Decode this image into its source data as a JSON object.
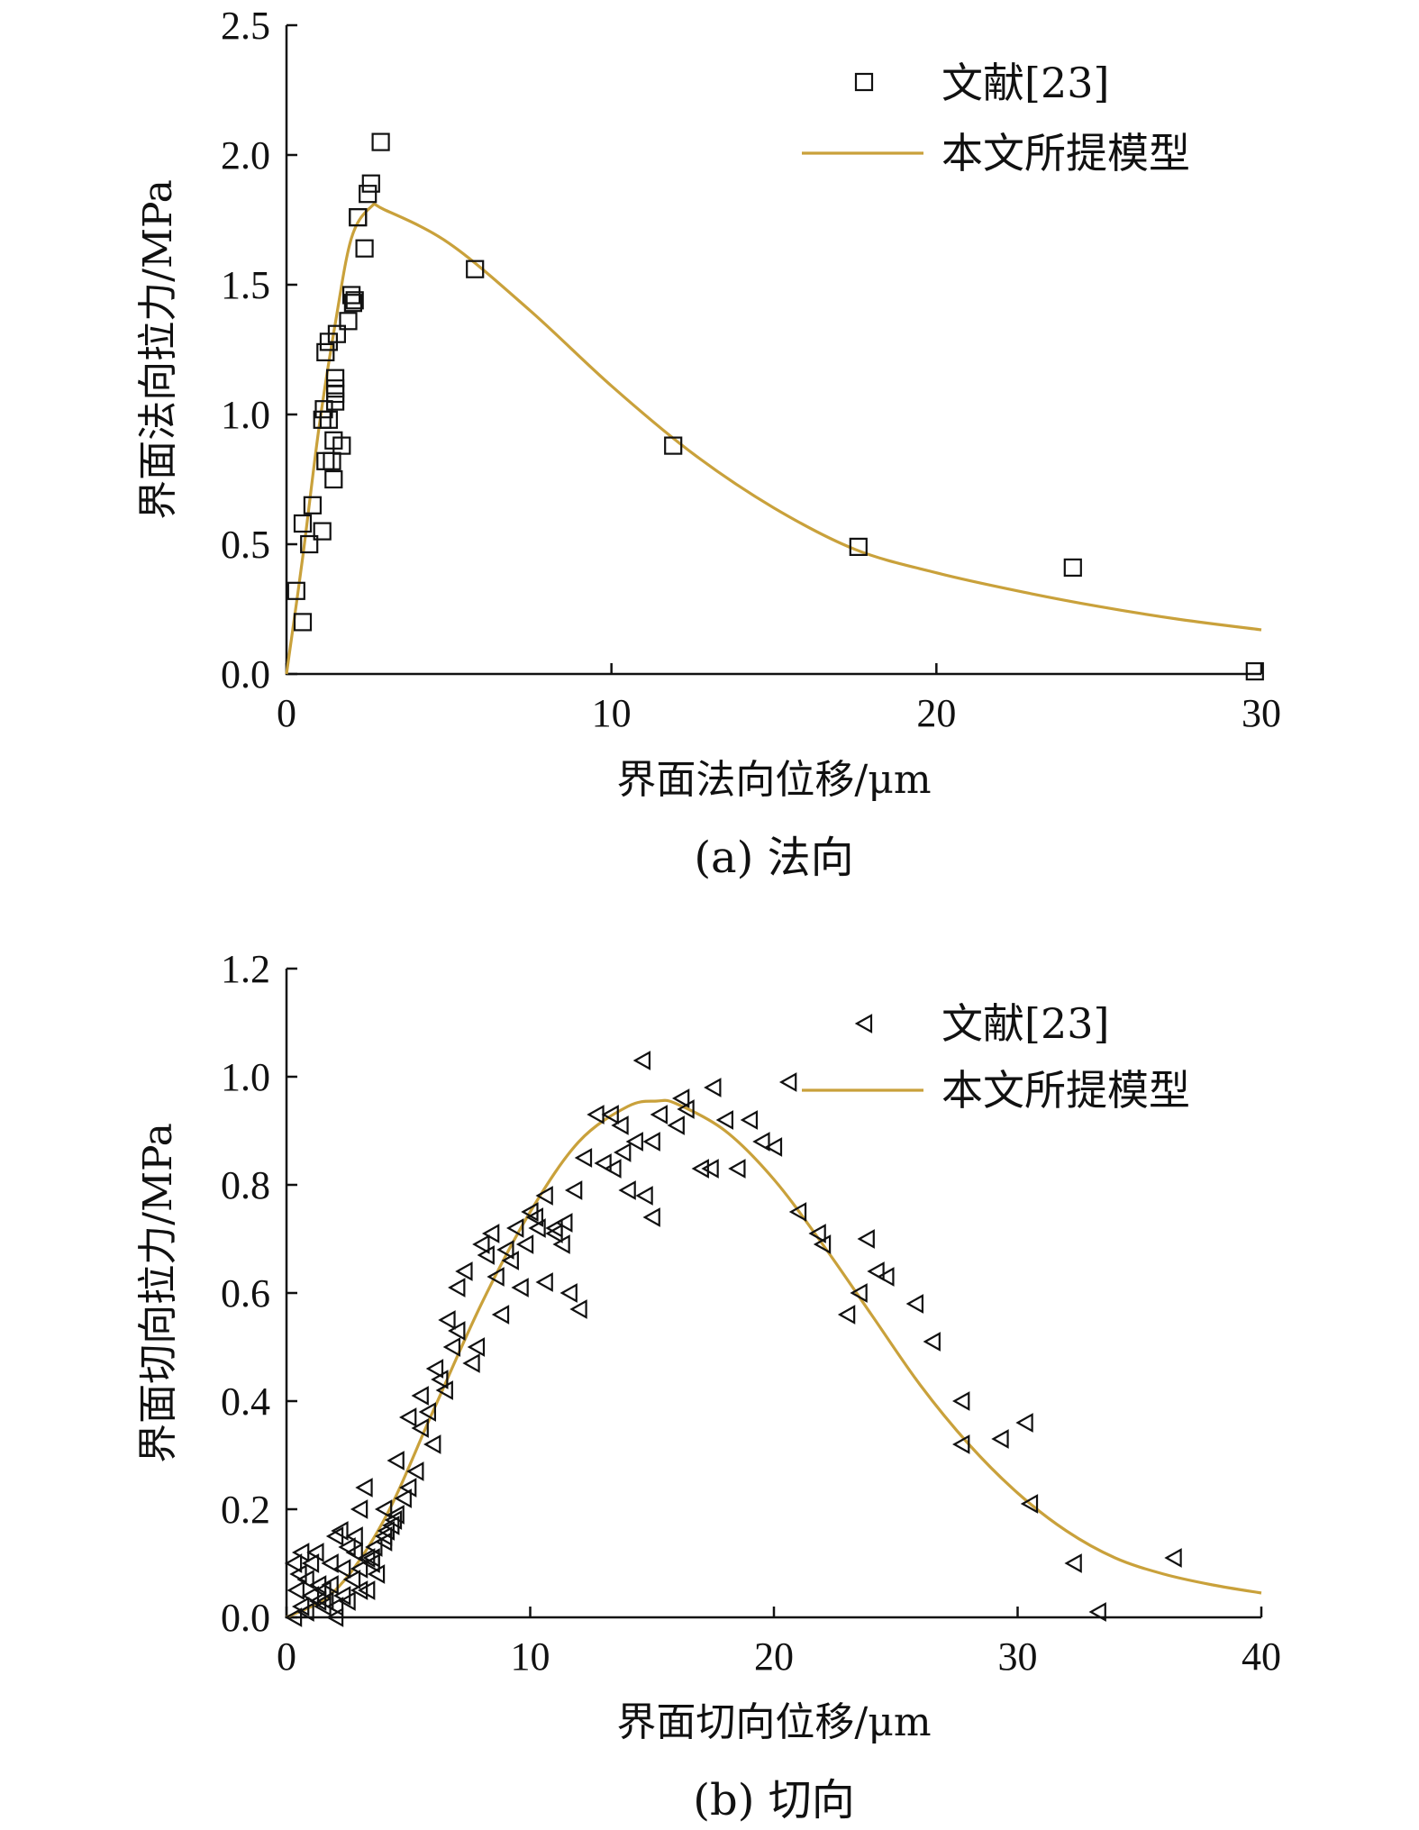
{
  "chart_data": [
    {
      "type": "scatter",
      "caption": "(a) 法向",
      "xlabel": "界面法向位移/μm",
      "ylabel": "界面法向拉力/MPa",
      "xlim": [
        0,
        30
      ],
      "ylim": [
        0,
        2.5
      ],
      "xticks": [
        "0",
        "10",
        "20",
        "30"
      ],
      "yticks": [
        "0.0",
        "0.5",
        "1.0",
        "1.5",
        "2.0",
        "2.5"
      ],
      "grid": false,
      "legend_position": "top-right",
      "line_color": "#C9A13B",
      "series": [
        {
          "name": "文献[23]",
          "marker": "square",
          "x": [
            0.3,
            0.5,
            0.5,
            0.7,
            0.8,
            1.1,
            1.1,
            1.15,
            1.2,
            1.2,
            1.3,
            1.3,
            1.4,
            1.45,
            1.45,
            1.5,
            1.5,
            1.5,
            1.5,
            1.55,
            1.7,
            1.9,
            2.0,
            2.05,
            2.1,
            2.2,
            2.2,
            2.4,
            2.5,
            2.6,
            2.9,
            5.8,
            11.9,
            17.6,
            24.2,
            29.8
          ],
          "y": [
            0.32,
            0.2,
            0.58,
            0.5,
            0.65,
            0.55,
            0.98,
            1.02,
            1.24,
            0.82,
            1.28,
            0.98,
            0.82,
            0.9,
            0.75,
            1.05,
            1.1,
            1.14,
            1.08,
            1.31,
            0.88,
            1.36,
            1.46,
            1.43,
            1.44,
            1.76,
            1.76,
            1.64,
            1.85,
            1.89,
            2.05,
            1.56,
            0.88,
            0.49,
            0.41,
            0.01
          ]
        },
        {
          "name": "本文所提模型",
          "line": "solid",
          "peak": [
            2.6,
            1.8
          ],
          "x": [
            0,
            0.5,
            1.0,
            1.5,
            2.0,
            2.6,
            3,
            5,
            7.5,
            10,
            12.5,
            15,
            17.5,
            20,
            22.5,
            25,
            27.5,
            30
          ],
          "y": [
            0.0,
            0.45,
            0.95,
            1.35,
            1.68,
            1.8,
            1.79,
            1.66,
            1.4,
            1.11,
            0.85,
            0.64,
            0.48,
            0.39,
            0.32,
            0.26,
            0.21,
            0.17
          ]
        }
      ]
    },
    {
      "type": "scatter",
      "caption": "(b) 切向",
      "xlabel": "界面切向位移/μm",
      "ylabel": "界面切向拉力/MPa",
      "xlim": [
        0,
        40
      ],
      "ylim": [
        0,
        1.2
      ],
      "xticks": [
        "0",
        "10",
        "20",
        "30",
        "40"
      ],
      "yticks": [
        "0.0",
        "0.2",
        "0.4",
        "0.6",
        "0.8",
        "1.0",
        "1.2"
      ],
      "grid": false,
      "legend_position": "top-right",
      "line_color": "#C9A13B",
      "series": [
        {
          "name": "文献[23]",
          "marker": "triangle-left",
          "x": [
            0.3,
            0.4,
            0.5,
            0.6,
            0.8,
            1.0,
            1.2,
            1.5,
            1.8,
            2.0,
            2.2,
            2.5,
            2.8,
            3.0,
            3.2,
            0.3,
            0.6,
            1.0,
            1.3,
            1.6,
            2.0,
            2.3,
            2.7,
            3.0,
            3.3,
            3.6,
            4.0,
            4.3,
            0.8,
            1.3,
            1.8,
            2.3,
            2.8,
            3.3,
            3.7,
            4.1,
            4.5,
            5.0,
            1.5,
            2.0,
            2.5,
            3.0,
            3.5,
            4.0,
            4.4,
            4.8,
            5.3,
            5.5,
            5.8,
            6.1,
            6.5,
            6.8,
            7.0,
            3.5,
            4.0,
            4.5,
            5.0,
            5.5,
            6.0,
            6.3,
            6.6,
            7.0,
            7.3,
            7.6,
            8.0,
            8.4,
            8.8,
            9.2,
            9.6,
            10.0,
            10.3,
            10.6,
            11.0,
            11.3,
            11.6,
            12.0,
            7.8,
            8.2,
            8.6,
            9.0,
            9.4,
            9.8,
            10.2,
            10.6,
            11.0,
            11.4,
            11.8,
            12.2,
            12.7,
            13.0,
            13.3,
            13.7,
            14.0,
            14.3,
            14.7,
            15.0,
            15.3,
            16.0,
            16.4,
            17.0,
            17.5,
            18.0,
            18.5,
            19.0,
            19.5,
            20.0,
            20.6,
            21.0,
            21.8,
            22.0,
            23.0,
            23.5,
            23.8,
            24.2,
            24.6,
            25.8,
            26.5,
            27.7,
            27.7,
            29.3,
            30.3,
            30.5,
            32.3,
            33.3,
            36.4,
            13.4,
            13.8,
            14.6,
            15.0,
            16.2,
            17.4
          ],
          "y": [
            0.1,
            0.05,
            0.08,
            0.12,
            0.07,
            0.1,
            0.12,
            0.05,
            0.1,
            0.15,
            0.16,
            0.13,
            0.15,
            0.2,
            0.24,
            0.0,
            0.02,
            0.04,
            0.06,
            0.03,
            0.02,
            0.04,
            0.07,
            0.09,
            0.11,
            0.13,
            0.15,
            0.17,
            0.01,
            0.03,
            0.06,
            0.09,
            0.12,
            0.05,
            0.08,
            0.16,
            0.19,
            0.24,
            0.02,
            0.0,
            0.03,
            0.05,
            0.11,
            0.14,
            0.18,
            0.22,
            0.27,
            0.35,
            0.38,
            0.46,
            0.42,
            0.5,
            0.53,
            0.1,
            0.2,
            0.29,
            0.37,
            0.41,
            0.32,
            0.44,
            0.55,
            0.61,
            0.64,
            0.47,
            0.69,
            0.71,
            0.56,
            0.66,
            0.61,
            0.75,
            0.72,
            0.62,
            0.72,
            0.69,
            0.6,
            0.57,
            0.5,
            0.67,
            0.63,
            0.68,
            0.72,
            0.69,
            0.74,
            0.78,
            0.71,
            0.73,
            0.79,
            0.85,
            0.93,
            0.84,
            0.93,
            0.91,
            0.79,
            0.88,
            0.78,
            0.74,
            0.93,
            0.91,
            0.94,
            0.83,
            0.98,
            0.92,
            0.83,
            0.92,
            0.88,
            0.87,
            0.99,
            0.75,
            0.71,
            0.69,
            0.56,
            0.6,
            0.7,
            0.64,
            0.63,
            0.58,
            0.51,
            0.4,
            0.32,
            0.33,
            0.36,
            0.21,
            0.1,
            0.01,
            0.11,
            0.83,
            0.86,
            1.03,
            0.88,
            0.96,
            0.83
          ],
          "markers_note": ""
        },
        {
          "name": "本文所提模型",
          "line": "solid",
          "peak": [
            15.2,
            0.955
          ],
          "x": [
            0,
            2,
            4,
            6,
            8,
            10,
            12,
            14,
            15.2,
            16,
            18,
            20,
            22,
            24,
            26,
            28,
            30,
            32,
            34,
            36,
            38,
            40
          ],
          "y": [
            0.0,
            0.05,
            0.18,
            0.38,
            0.58,
            0.75,
            0.88,
            0.945,
            0.955,
            0.95,
            0.9,
            0.81,
            0.69,
            0.56,
            0.43,
            0.32,
            0.23,
            0.16,
            0.11,
            0.08,
            0.06,
            0.045
          ]
        }
      ]
    }
  ]
}
